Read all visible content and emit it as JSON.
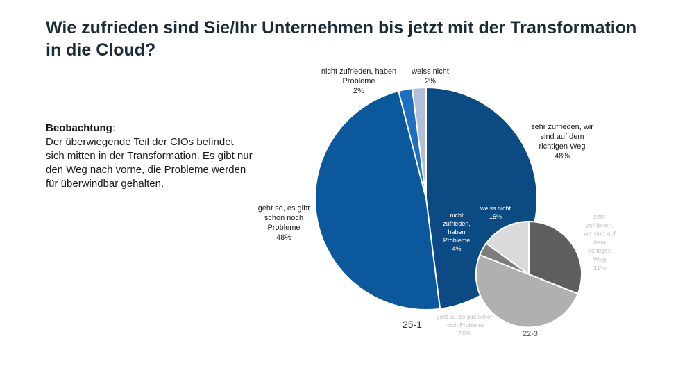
{
  "title": "Wie zufrieden sind Sie/Ihr Unternehmen bis jetzt mit der Transformation in die Cloud?",
  "observation": {
    "heading": "Beobachtung",
    "heading_suffix": ":",
    "text": "Der überwiegende Teil der CIOs befindet sich mitten in der Transformation. Es gibt nur den Weg nach vorne, die Probleme werden für überwindbar gehalten."
  },
  "chart_data": [
    {
      "type": "pie",
      "caption": "25-1",
      "slices": [
        {
          "label": [
            "sehr zufrieden, wir",
            "sind auf dem",
            "richtigen Weg"
          ],
          "percent_label": "48%",
          "value": 48,
          "color": "#0c4a84"
        },
        {
          "label": [
            "geht so, es gibt",
            "schon noch",
            "Probleme"
          ],
          "percent_label": "48%",
          "value": 48,
          "color": "#0b599c"
        },
        {
          "label": [
            "nicht zufrieden, haben",
            "Probleme"
          ],
          "percent_label": "2%",
          "value": 2,
          "color": "#1f6fc0"
        },
        {
          "label": [
            "weiss nicht"
          ],
          "percent_label": "2%",
          "value": 2,
          "color": "#b2bfd9"
        }
      ]
    },
    {
      "type": "pie",
      "caption": "22-3",
      "slices": [
        {
          "label": [
            "sehr",
            "zufrieden,",
            "wir sind auf",
            "dem",
            "richtigen",
            "Weg"
          ],
          "percent_label": "31%",
          "value": 31,
          "color": "#5e5e5e"
        },
        {
          "label": [
            "geht so, es gibt schon",
            "noch Probleme"
          ],
          "percent_label": "50%",
          "value": 50,
          "color": "#b0b0b0"
        },
        {
          "label": [
            "nicht",
            "zufrieden,",
            "haben",
            "Probleme"
          ],
          "percent_label": "4%",
          "value": 4,
          "color": "#7d7d7d"
        },
        {
          "label": [
            "weiss nicht"
          ],
          "percent_label": "15%",
          "value": 15,
          "color": "#dadada"
        }
      ]
    }
  ]
}
